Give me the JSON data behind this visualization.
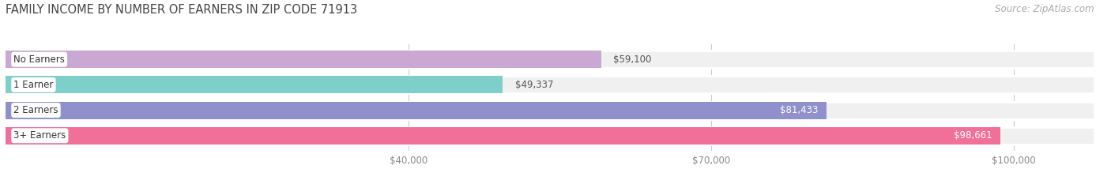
{
  "title": "FAMILY INCOME BY NUMBER OF EARNERS IN ZIP CODE 71913",
  "source": "Source: ZipAtlas.com",
  "categories": [
    "No Earners",
    "1 Earner",
    "2 Earners",
    "3+ Earners"
  ],
  "values": [
    59100,
    49337,
    81433,
    98661
  ],
  "bar_colors": [
    "#c9a8d4",
    "#7ecfc9",
    "#9090cc",
    "#f07099"
  ],
  "label_colors": [
    "#444444",
    "#444444",
    "#ffffff",
    "#ffffff"
  ],
  "xmin": 0,
  "xmax": 108000,
  "xticks": [
    40000,
    70000,
    100000
  ],
  "xtick_labels": [
    "$40,000",
    "$70,000",
    "$100,000"
  ],
  "background_color": "#ffffff",
  "bar_background_color": "#f0f0f0",
  "title_fontsize": 10.5,
  "source_fontsize": 8.5
}
